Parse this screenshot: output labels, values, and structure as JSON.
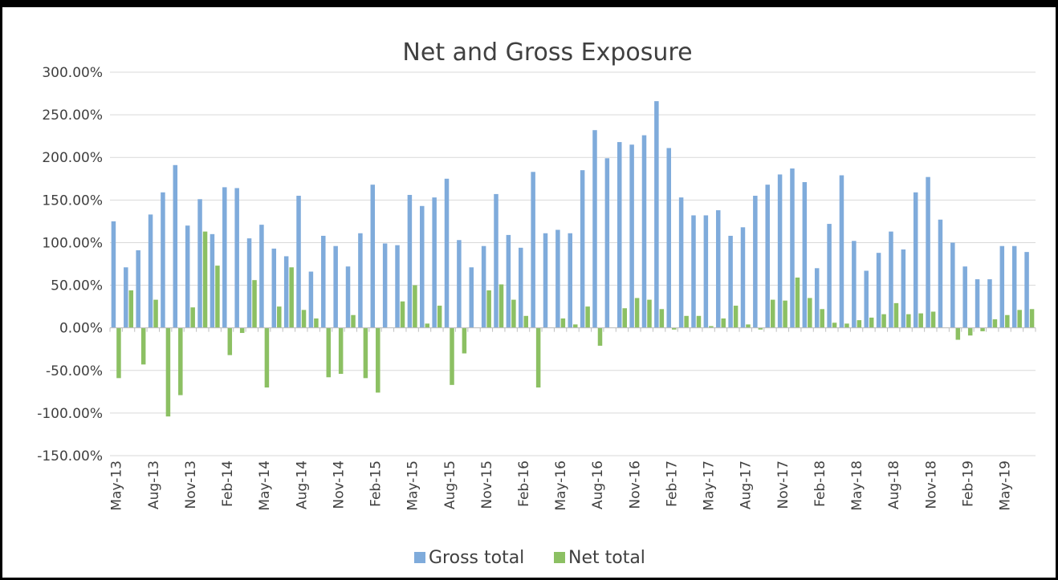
{
  "chart_data": {
    "type": "bar",
    "title": "Net and Gross Exposure",
    "xlabel": "",
    "ylabel": "",
    "ylim": [
      -150,
      300
    ],
    "y_ticks": [
      300,
      250,
      200,
      150,
      100,
      50,
      0,
      -50,
      -100,
      -150
    ],
    "y_tick_labels": [
      "300.00%",
      "250.00%",
      "200.00%",
      "150.00%",
      "100.00%",
      "50.00%",
      "0.00%",
      "-50.00%",
      "-100.00%",
      "-150.00%"
    ],
    "grid": "horizontal",
    "legend_position": "bottom",
    "categories": [
      "May-13",
      "Jun-13",
      "Jul-13",
      "Aug-13",
      "Sep-13",
      "Oct-13",
      "Nov-13",
      "Dec-13",
      "Jan-14",
      "Feb-14",
      "Mar-14",
      "Apr-14",
      "May-14",
      "Jun-14",
      "Jul-14",
      "Aug-14",
      "Sep-14",
      "Oct-14",
      "Nov-14",
      "Dec-14",
      "Jan-15",
      "Feb-15",
      "Mar-15",
      "Apr-15",
      "May-15",
      "Jun-15",
      "Jul-15",
      "Aug-15",
      "Sep-15",
      "Oct-15",
      "Nov-15",
      "Dec-15",
      "Jan-16",
      "Feb-16",
      "Mar-16",
      "Apr-16",
      "May-16",
      "Jun-16",
      "Jul-16",
      "Aug-16",
      "Sep-16",
      "Oct-16",
      "Nov-16",
      "Dec-16",
      "Jan-17",
      "Feb-17",
      "Mar-17",
      "Apr-17",
      "May-17",
      "Jun-17",
      "Jul-17",
      "Aug-17",
      "Sep-17",
      "Oct-17",
      "Nov-17",
      "Dec-17",
      "Jan-18",
      "Feb-18",
      "Mar-18",
      "Apr-18",
      "May-18",
      "Jun-18",
      "Jul-18",
      "Aug-18",
      "Sep-18",
      "Oct-18",
      "Nov-18",
      "Dec-18",
      "Jan-19",
      "Feb-19",
      "Mar-19",
      "Apr-19",
      "May-19",
      "Jun-19",
      "Jul-19"
    ],
    "shown_tick_labels": [
      "May-13",
      "Aug-13",
      "Nov-13",
      "Feb-14",
      "May-14",
      "Aug-14",
      "Nov-14",
      "Feb-15",
      "May-15",
      "Aug-15",
      "Nov-15",
      "Feb-16",
      "May-16",
      "Aug-16",
      "Nov-16",
      "Feb-17",
      "May-17",
      "Aug-17",
      "Nov-17",
      "Feb-18",
      "May-18",
      "Aug-18",
      "Nov-18",
      "Feb-19",
      "May-19"
    ],
    "series": [
      {
        "name": "Gross total",
        "color": "#7fabdb",
        "values": [
          125,
          71,
          91,
          133,
          159,
          191,
          120,
          151,
          110,
          165,
          164,
          105,
          121,
          93,
          84,
          155,
          66,
          108,
          96,
          72,
          111,
          168,
          99,
          97,
          156,
          143,
          153,
          175,
          103,
          71,
          96,
          157,
          109,
          94,
          183,
          111,
          115,
          111,
          185,
          232,
          199,
          218,
          215,
          226,
          266,
          211,
          153,
          132,
          132,
          138,
          108,
          118,
          155,
          168,
          180,
          187,
          171,
          70,
          122,
          179,
          102,
          67,
          88,
          113,
          92,
          159,
          177,
          127,
          100,
          72,
          57,
          57,
          96,
          96,
          89
        ]
      },
      {
        "name": "Net total",
        "color": "#8cc063",
        "values": [
          -59,
          44,
          -43,
          33,
          -104,
          -79,
          24,
          113,
          73,
          -32,
          -6,
          56,
          -70,
          25,
          71,
          21,
          11,
          -58,
          -54,
          15,
          -59,
          -76,
          0,
          31,
          50,
          5,
          26,
          -67,
          -30,
          0,
          44,
          51,
          33,
          14,
          -70,
          0,
          11,
          4,
          25,
          -21,
          0,
          23,
          35,
          33,
          22,
          -2,
          14,
          14,
          2,
          11,
          26,
          4,
          -2,
          33,
          32,
          59,
          35,
          22,
          6,
          5,
          9,
          12,
          16,
          29,
          16,
          17,
          19,
          0,
          -14,
          -9,
          -4,
          10,
          15,
          21,
          22
        ]
      }
    ]
  }
}
